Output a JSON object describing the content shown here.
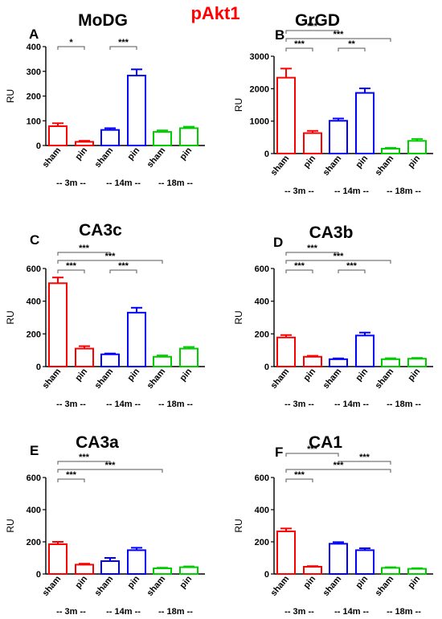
{
  "figure_title": "pAkt1",
  "colors": {
    "title": "#ff0000",
    "g3m": "#ff0000",
    "g14m": "#0000ff",
    "g18m": "#00cc00",
    "axis": "#000000"
  },
  "chart_data": [
    {
      "type": "bar",
      "panel_letter": "A",
      "title": "MoDG",
      "ylabel": "RU",
      "ylim": [
        0,
        400
      ],
      "yticks": [
        0,
        100,
        200,
        300,
        400
      ],
      "categories": [
        "sham",
        "pin",
        "sham",
        "pin",
        "sham",
        "pin"
      ],
      "groups": [
        {
          "label": "-- 3m --",
          "color": "#ff0000"
        },
        {
          "label": "-- 14m --",
          "color": "#0000ff"
        },
        {
          "label": "-- 18m --",
          "color": "#00cc00"
        }
      ],
      "values": [
        78,
        15,
        63,
        283,
        55,
        70
      ],
      "errors": [
        12,
        4,
        7,
        25,
        6,
        6
      ],
      "significance": [
        {
          "from": 0,
          "to": 1,
          "label": "*"
        },
        {
          "from": 2,
          "to": 3,
          "label": "***"
        }
      ]
    },
    {
      "type": "bar",
      "panel_letter": "B",
      "title": "GrGD",
      "ylabel": "RU",
      "ylim": [
        0,
        3000
      ],
      "yticks": [
        0,
        1000,
        2000,
        3000
      ],
      "categories": [
        "sham",
        "pin",
        "sham",
        "pin",
        "sham",
        "pin"
      ],
      "groups": [
        {
          "label": "-- 3m --",
          "color": "#ff0000"
        },
        {
          "label": "-- 14m --",
          "color": "#0000ff"
        },
        {
          "label": "-- 18m --",
          "color": "#00cc00"
        }
      ],
      "values": [
        2340,
        630,
        1010,
        1870,
        150,
        390
      ],
      "errors": [
        280,
        70,
        70,
        140,
        25,
        60
      ],
      "significance": [
        {
          "from": 0,
          "to": 1,
          "label": "***"
        },
        {
          "from": 2,
          "to": 3,
          "label": "**"
        },
        {
          "from": 0,
          "to": 2,
          "label": "***"
        },
        {
          "from": 0,
          "to": 4,
          "label": "***"
        }
      ]
    },
    {
      "type": "bar",
      "panel_letter": "C",
      "title": "CA3c",
      "ylabel": "RU",
      "ylim": [
        0,
        600
      ],
      "yticks": [
        0,
        200,
        400,
        600
      ],
      "categories": [
        "sham",
        "pin",
        "sham",
        "pin",
        "sham",
        "pin"
      ],
      "groups": [
        {
          "label": "-- 3m --",
          "color": "#ff0000"
        },
        {
          "label": "-- 14m --",
          "color": "#0000ff"
        },
        {
          "label": "-- 18m --",
          "color": "#00cc00"
        }
      ],
      "values": [
        510,
        110,
        75,
        330,
        60,
        110
      ],
      "errors": [
        35,
        15,
        5,
        30,
        8,
        10
      ],
      "significance": [
        {
          "from": 0,
          "to": 1,
          "label": "***"
        },
        {
          "from": 2,
          "to": 3,
          "label": "***"
        },
        {
          "from": 0,
          "to": 2,
          "label": "***"
        },
        {
          "from": 0,
          "to": 4,
          "label": "***"
        }
      ]
    },
    {
      "type": "bar",
      "panel_letter": "D",
      "title": "CA3b",
      "ylabel": "RU",
      "ylim": [
        0,
        600
      ],
      "yticks": [
        0,
        200,
        400,
        600
      ],
      "categories": [
        "sham",
        "pin",
        "sham",
        "pin",
        "sham",
        "pin"
      ],
      "groups": [
        {
          "label": "-- 3m --",
          "color": "#ff0000"
        },
        {
          "label": "-- 14m --",
          "color": "#0000ff"
        },
        {
          "label": "-- 18m --",
          "color": "#00cc00"
        }
      ],
      "values": [
        178,
        60,
        45,
        190,
        45,
        48
      ],
      "errors": [
        15,
        6,
        5,
        18,
        6,
        5
      ],
      "significance": [
        {
          "from": 0,
          "to": 1,
          "label": "***"
        },
        {
          "from": 2,
          "to": 3,
          "label": "***"
        },
        {
          "from": 0,
          "to": 2,
          "label": "***"
        },
        {
          "from": 0,
          "to": 4,
          "label": "***"
        }
      ]
    },
    {
      "type": "bar",
      "panel_letter": "E",
      "title": "CA3a",
      "ylabel": "RU",
      "ylim": [
        0,
        600
      ],
      "yticks": [
        0,
        200,
        400,
        600
      ],
      "categories": [
        "sham",
        "pin",
        "sham",
        "pin",
        "sham",
        "pin"
      ],
      "groups": [
        {
          "label": "-- 3m --",
          "color": "#ff0000"
        },
        {
          "label": "-- 14m --",
          "color": "#0000ff"
        },
        {
          "label": "-- 18m --",
          "color": "#00cc00"
        }
      ],
      "values": [
        185,
        58,
        80,
        148,
        35,
        42
      ],
      "errors": [
        15,
        6,
        20,
        15,
        4,
        5
      ],
      "significance": [
        {
          "from": 0,
          "to": 1,
          "label": "***"
        },
        {
          "from": 0,
          "to": 2,
          "label": "***"
        },
        {
          "from": 0,
          "to": 4,
          "label": "***"
        }
      ]
    },
    {
      "type": "bar",
      "panel_letter": "F",
      "title": "CA1",
      "ylabel": "RU",
      "ylim": [
        0,
        600
      ],
      "yticks": [
        0,
        200,
        400,
        600
      ],
      "categories": [
        "sham",
        "pin",
        "sham",
        "pin",
        "sham",
        "pin"
      ],
      "groups": [
        {
          "label": "-- 3m --",
          "color": "#ff0000"
        },
        {
          "label": "-- 14m --",
          "color": "#0000ff"
        },
        {
          "label": "-- 18m --",
          "color": "#00cc00"
        }
      ],
      "values": [
        265,
        45,
        188,
        148,
        38,
        32
      ],
      "errors": [
        18,
        4,
        10,
        12,
        4,
        4
      ],
      "significance": [
        {
          "from": 0,
          "to": 1,
          "label": "***"
        },
        {
          "from": 0,
          "to": 2,
          "label": "***"
        },
        {
          "from": 2,
          "to": 4,
          "label": "***"
        },
        {
          "from": 0,
          "to": 4,
          "label": "***"
        }
      ]
    }
  ]
}
